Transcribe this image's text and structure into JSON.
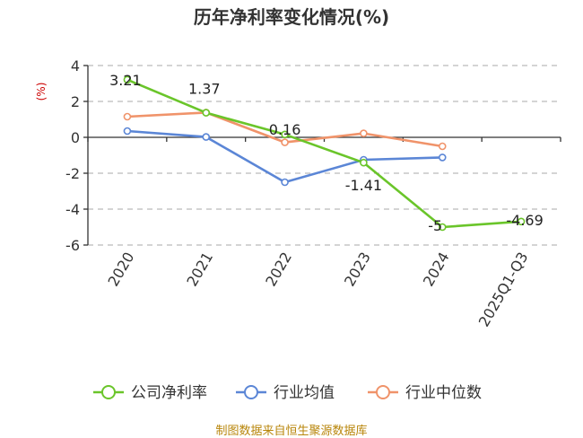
{
  "chart_data": {
    "type": "line",
    "title": "历年净利率变化情况(%)",
    "ylabel": "(%)",
    "ylim": [
      -6,
      4
    ],
    "yticks": [
      4,
      2,
      0,
      -2,
      -4,
      -6
    ],
    "categories": [
      "2020",
      "2021",
      "2022",
      "2023",
      "2024",
      "2025Q1-Q3"
    ],
    "series": [
      {
        "name": "公司净利率",
        "color": "#6ac52a",
        "values": [
          3.21,
          1.37,
          0.16,
          -1.41,
          -5,
          -4.69
        ],
        "labels": [
          "3.21",
          "1.37",
          "0.16",
          "-1.41",
          "-5",
          "-4.69"
        ]
      },
      {
        "name": "行业均值",
        "color": "#5b86d6",
        "values": [
          0.35,
          0.02,
          -2.5,
          -1.25,
          -1.12,
          null
        ]
      },
      {
        "name": "行业中位数",
        "color": "#f0936a",
        "values": [
          1.15,
          1.38,
          -0.28,
          0.22,
          -0.5,
          null
        ]
      }
    ],
    "grid": true,
    "legend": "bottom"
  },
  "source": "制图数据来自恒生聚源数据库"
}
